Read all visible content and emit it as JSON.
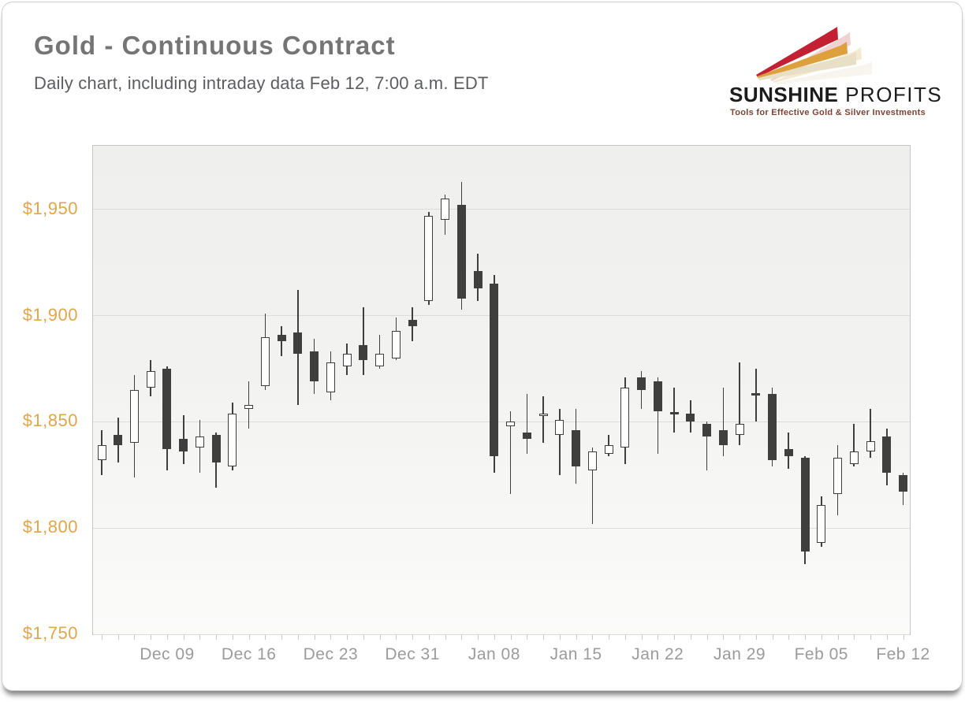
{
  "header": {
    "title": "Gold - Continuous Contract",
    "subtitle": "Daily chart, including intraday data Feb 12, 7:00 a.m. EDT"
  },
  "logo": {
    "brand_primary": "SUNSHINE",
    "brand_secondary": " PROFITS",
    "tagline": "Tools for Effective Gold & Silver Investments",
    "colors": {
      "ray_red": "#c32033",
      "ray_gold": "#dda03d",
      "ray_beige": "#e7dfc6",
      "shadow_red": "#dda0a0",
      "shadow_gold": "#ecd09a",
      "shadow_beige": "#efe9d9",
      "text": "#1c1c1c",
      "tagline": "#7a4536"
    }
  },
  "chart_data": {
    "type": "candlestick",
    "title": "Gold - Continuous Contract",
    "subtitle": "Daily chart, including intraday data Feb 12, 7:00 a.m. EDT",
    "series_name": "Gold continuous contract, daily OHLC, USD per troy ounce",
    "columns": [
      "open",
      "high",
      "low",
      "close"
    ],
    "candles": [
      [
        1832,
        1846,
        1825,
        1839
      ],
      [
        1844,
        1852,
        1831,
        1839
      ],
      [
        1840,
        1872,
        1824,
        1865
      ],
      [
        1866,
        1879,
        1862,
        1874
      ],
      [
        1875,
        1876,
        1827,
        1837
      ],
      [
        1842,
        1853,
        1830,
        1836
      ],
      [
        1838,
        1851,
        1826,
        1843
      ],
      [
        1844,
        1845,
        1819,
        1831
      ],
      [
        1829,
        1859,
        1827,
        1854
      ],
      [
        1856,
        1869,
        1847,
        1858
      ],
      [
        1867,
        1901,
        1865,
        1890
      ],
      [
        1891,
        1895,
        1881,
        1888
      ],
      [
        1892,
        1912,
        1858,
        1882
      ],
      [
        1883,
        1889,
        1863,
        1869
      ],
      [
        1864,
        1883,
        1860,
        1878
      ],
      [
        1876,
        1887,
        1872,
        1882
      ],
      [
        1886,
        1904,
        1872,
        1879
      ],
      [
        1876,
        1891,
        1875,
        1882
      ],
      [
        1880,
        1899,
        1879,
        1893
      ],
      [
        1898,
        1904,
        1888,
        1895
      ],
      [
        1907,
        1949,
        1905,
        1947
      ],
      [
        1945,
        1957,
        1938,
        1955
      ],
      [
        1952,
        1963,
        1903,
        1908
      ],
      [
        1921,
        1929,
        1907,
        1913
      ],
      [
        1915,
        1919,
        1826,
        1834
      ],
      [
        1848,
        1855,
        1816,
        1850
      ],
      [
        1845,
        1863,
        1835,
        1842
      ],
      [
        1853,
        1862,
        1840,
        1854
      ],
      [
        1844,
        1856,
        1825,
        1851
      ],
      [
        1846,
        1856,
        1821,
        1829
      ],
      [
        1827,
        1838,
        1802,
        1836
      ],
      [
        1835,
        1844,
        1834,
        1839
      ],
      [
        1838,
        1871,
        1830,
        1866
      ],
      [
        1871,
        1874,
        1856,
        1865
      ],
      [
        1869,
        1871,
        1835,
        1855
      ],
      [
        1854.5,
        1866,
        1845,
        1854
      ],
      [
        1854,
        1860,
        1845,
        1850
      ],
      [
        1849,
        1850,
        1827,
        1843
      ],
      [
        1846,
        1866,
        1834,
        1839
      ],
      [
        1844,
        1878,
        1839,
        1849
      ],
      [
        1863.5,
        1875,
        1850,
        1863
      ],
      [
        1863,
        1866,
        1829,
        1832
      ],
      [
        1837,
        1845,
        1828,
        1834
      ],
      [
        1833,
        1834,
        1783,
        1789
      ],
      [
        1793,
        1815,
        1791,
        1811
      ],
      [
        1816,
        1839,
        1806,
        1833
      ],
      [
        1830,
        1849,
        1829,
        1836
      ],
      [
        1836,
        1856,
        1833,
        1841
      ],
      [
        1843,
        1847,
        1820,
        1826
      ],
      [
        1825,
        1826,
        1811,
        1817
      ]
    ],
    "x_ticks": [
      {
        "label": "Dec 09",
        "candle": 5
      },
      {
        "label": "Dec 16",
        "candle": 10
      },
      {
        "label": "Dec 23",
        "candle": 15
      },
      {
        "label": "Dec 31",
        "candle": 20
      },
      {
        "label": "Jan 08",
        "candle": 25
      },
      {
        "label": "Jan 15",
        "candle": 30
      },
      {
        "label": "Jan 22",
        "candle": 35
      },
      {
        "label": "Jan 29",
        "candle": 40
      },
      {
        "label": "Feb 05",
        "candle": 45
      },
      {
        "label": "Feb 12",
        "candle": 50
      }
    ],
    "y_ticks": [
      {
        "label": "$1,950",
        "value": 1950
      },
      {
        "label": "$1,900",
        "value": 1900
      },
      {
        "label": "$1,850",
        "value": 1850
      },
      {
        "label": "$1,800",
        "value": 1800
      },
      {
        "label": "$1,750",
        "value": 1750
      }
    ],
    "ylim": [
      1750,
      1980
    ],
    "grid": "horizontal",
    "legend": "none",
    "colors": {
      "bullish_fill": "#ffffff",
      "bearish_fill": "#3f3f3f",
      "outline": "#3f3f3f",
      "grid": "#dcdcdb",
      "y_label": "#dfa64c",
      "x_label": "#9b9b9b",
      "plot_border": "#c6c6c6"
    }
  }
}
